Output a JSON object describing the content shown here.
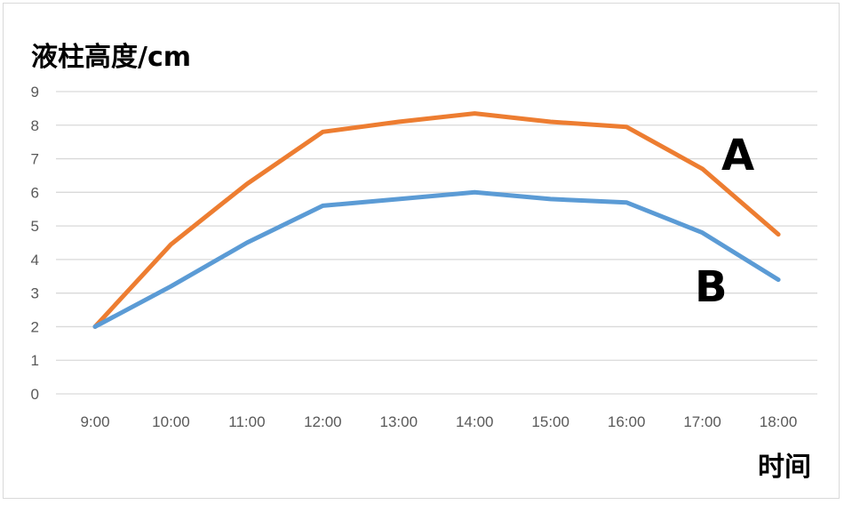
{
  "chart_data": {
    "type": "line",
    "ylabel": "液柱高度/cm",
    "xlabel": "时间",
    "categories": [
      "9:00",
      "10:00",
      "11:00",
      "12:00",
      "13:00",
      "14:00",
      "15:00",
      "16:00",
      "17:00",
      "18:00"
    ],
    "ylim": [
      0,
      9
    ],
    "yticks": [
      0,
      1,
      2,
      3,
      4,
      5,
      6,
      7,
      8,
      9
    ],
    "grid": true,
    "series": [
      {
        "name": "A",
        "color": "#ED7D31",
        "values": [
          2.0,
          4.45,
          6.25,
          7.8,
          8.1,
          8.35,
          8.1,
          7.95,
          6.7,
          4.75
        ]
      },
      {
        "name": "B",
        "color": "#5B9BD5",
        "values": [
          2.0,
          3.2,
          4.5,
          5.6,
          5.8,
          6.0,
          5.8,
          5.7,
          4.8,
          3.4
        ]
      }
    ]
  }
}
